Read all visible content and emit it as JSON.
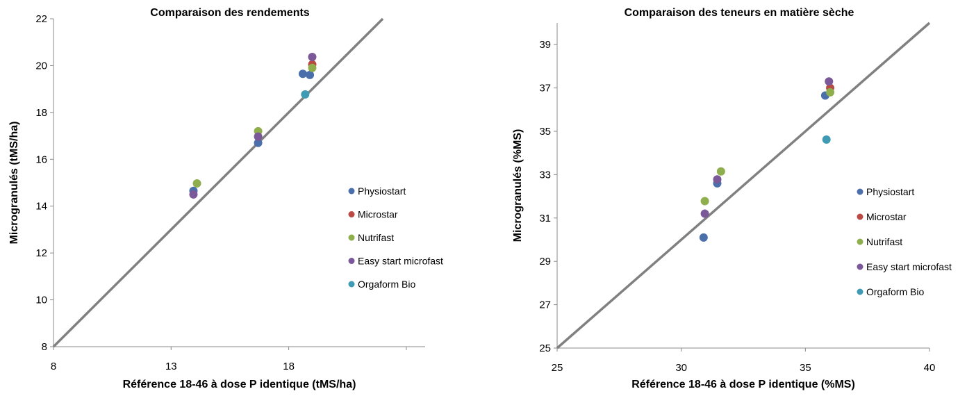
{
  "chart_data": [
    {
      "type": "scatter",
      "title": "Comparaison des rendements",
      "xlabel": "Référence 18-46 à dose P identique (tMS/ha)",
      "ylabel": "Microgranulés  (tMS/ha)",
      "xlim": [
        8,
        23.8
      ],
      "ylim": [
        8,
        22
      ],
      "x_ticks": [
        "8",
        "13",
        "18"
      ],
      "y_ticks": [
        "8",
        "10",
        "12",
        "14",
        "16",
        "18",
        "20",
        "22"
      ],
      "x_tick_values": [
        8,
        13,
        18
      ],
      "y_tick_values": [
        8,
        10,
        12,
        14,
        16,
        18,
        20,
        22
      ],
      "x_tick_marks": [
        8,
        13,
        18,
        23
      ],
      "reference_line": "y = x",
      "grid": false,
      "legend_position": "right",
      "series": [
        {
          "name": "Physiostart",
          "color": "#4a6faa",
          "points": [
            [
              13.95,
              14.65
            ],
            [
              16.7,
              16.7
            ],
            [
              18.6,
              19.65
            ],
            [
              18.9,
              19.6
            ]
          ]
        },
        {
          "name": "Microstar",
          "color": "#b94a44",
          "points": [
            [
              19.0,
              20.05
            ]
          ]
        },
        {
          "name": "Nutrifast",
          "color": "#8fae4e",
          "points": [
            [
              14.1,
              14.97
            ],
            [
              16.7,
              17.2
            ],
            [
              19.0,
              19.9
            ]
          ]
        },
        {
          "name": "Easy start microfast",
          "color": "#7b5897",
          "points": [
            [
              13.95,
              14.5
            ],
            [
              16.7,
              16.97
            ],
            [
              19.0,
              20.37
            ]
          ]
        },
        {
          "name": "Orgaform Bio",
          "color": "#3f9bb4",
          "points": [
            [
              18.7,
              18.77
            ]
          ]
        }
      ]
    },
    {
      "type": "scatter",
      "title": "Comparaison des teneurs en matière sèche",
      "xlabel": "Référence 18-46 à dose P identique (%MS)",
      "ylabel": "Microgranulés  (%MS)",
      "xlim": [
        25,
        40
      ],
      "ylim": [
        25,
        40
      ],
      "x_ticks": [
        "25",
        "30",
        "35",
        "40"
      ],
      "y_ticks": [
        "25",
        "27",
        "29",
        "31",
        "33",
        "35",
        "37",
        "39"
      ],
      "x_tick_values": [
        25,
        30,
        35,
        40
      ],
      "y_tick_values": [
        25,
        27,
        29,
        31,
        33,
        35,
        37,
        39
      ],
      "x_tick_marks": [
        25,
        30,
        35,
        40
      ],
      "reference_line": "y = x",
      "grid": false,
      "legend_position": "right",
      "series": [
        {
          "name": "Physiostart",
          "color": "#4a6faa",
          "points": [
            [
              30.9,
              30.1
            ],
            [
              31.45,
              32.6
            ],
            [
              35.8,
              36.65
            ]
          ]
        },
        {
          "name": "Microstar",
          "color": "#b94a44",
          "points": [
            [
              36.0,
              37.0
            ]
          ]
        },
        {
          "name": "Nutrifast",
          "color": "#8fae4e",
          "points": [
            [
              30.95,
              31.78
            ],
            [
              31.6,
              33.15
            ],
            [
              36.0,
              36.8
            ]
          ]
        },
        {
          "name": "Easy start microfast",
          "color": "#7b5897",
          "points": [
            [
              30.95,
              31.2
            ],
            [
              31.45,
              32.78
            ],
            [
              35.95,
              37.3
            ]
          ]
        },
        {
          "name": "Orgaform Bio",
          "color": "#3f9bb4",
          "points": [
            [
              35.85,
              34.62
            ]
          ]
        }
      ]
    }
  ]
}
